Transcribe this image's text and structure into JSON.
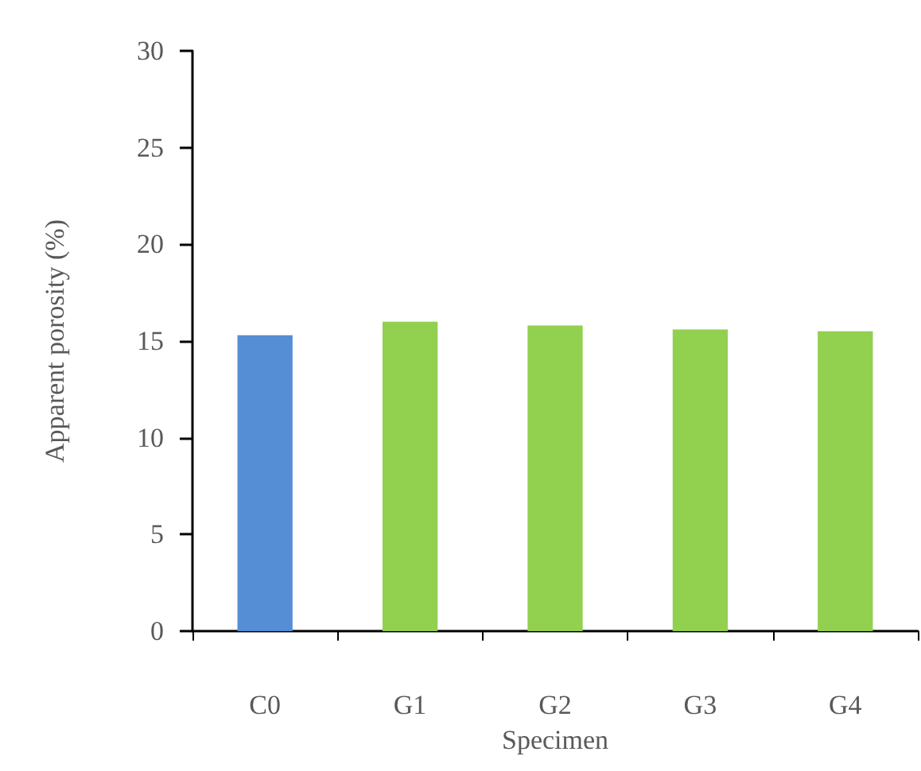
{
  "chart_data": {
    "type": "bar",
    "xlabel": "Specimen",
    "ylabel": "Apparent porosity (%)",
    "categories": [
      "C0",
      "G1",
      "G2",
      "G3",
      "G4"
    ],
    "values": [
      15.3,
      16.0,
      15.8,
      15.6,
      15.5
    ],
    "colors": [
      "#558ed5",
      "#92d050",
      "#92d050",
      "#92d050",
      "#92d050"
    ],
    "ylim": [
      0,
      30
    ],
    "yticks": [
      0,
      5,
      10,
      15,
      20,
      25,
      30
    ],
    "grid": false
  }
}
